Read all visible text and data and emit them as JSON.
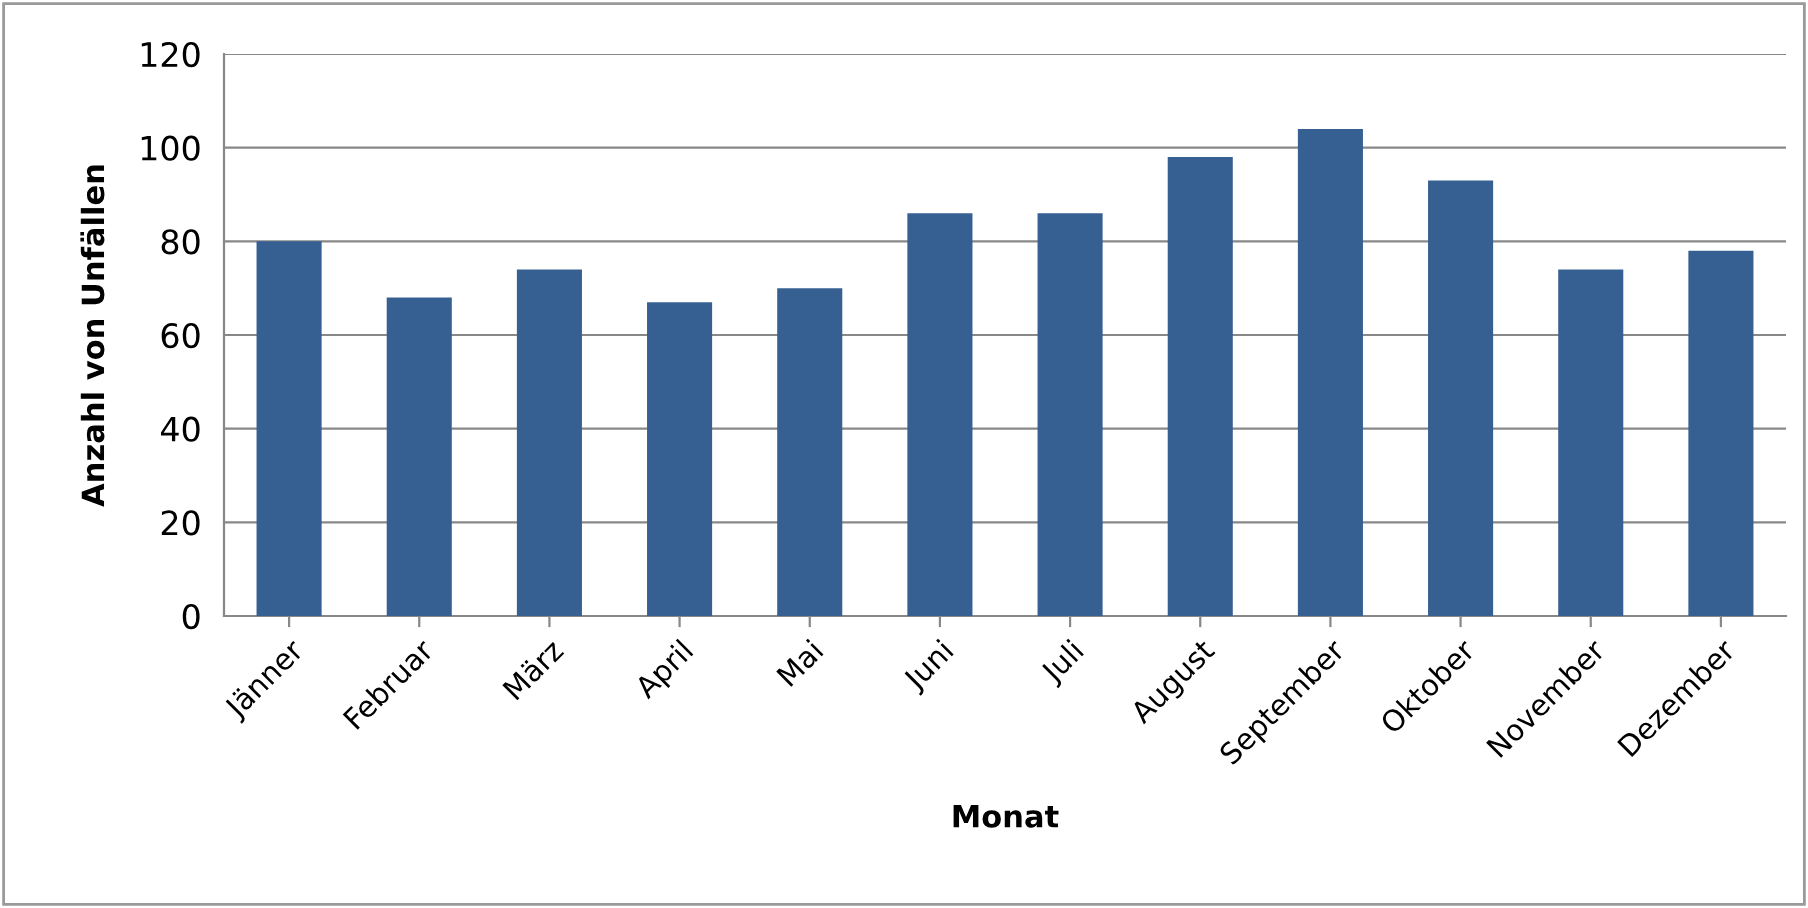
{
  "chart_data": {
    "type": "bar",
    "xlabel": "Monat",
    "ylabel": "Anzahl von Unfällen",
    "categories": [
      "Jänner",
      "Februar",
      "März",
      "April",
      "Mai",
      "Juni",
      "Juli",
      "August",
      "September",
      "Oktober",
      "November",
      "Dezember"
    ],
    "values": [
      80,
      68,
      74,
      67,
      70,
      86,
      86,
      98,
      104,
      93,
      74,
      78
    ],
    "color": "#366092",
    "ylim": [
      0,
      120
    ],
    "yticks": [
      0,
      20,
      40,
      60,
      80,
      100,
      120
    ],
    "grid": "y",
    "legend": false
  }
}
